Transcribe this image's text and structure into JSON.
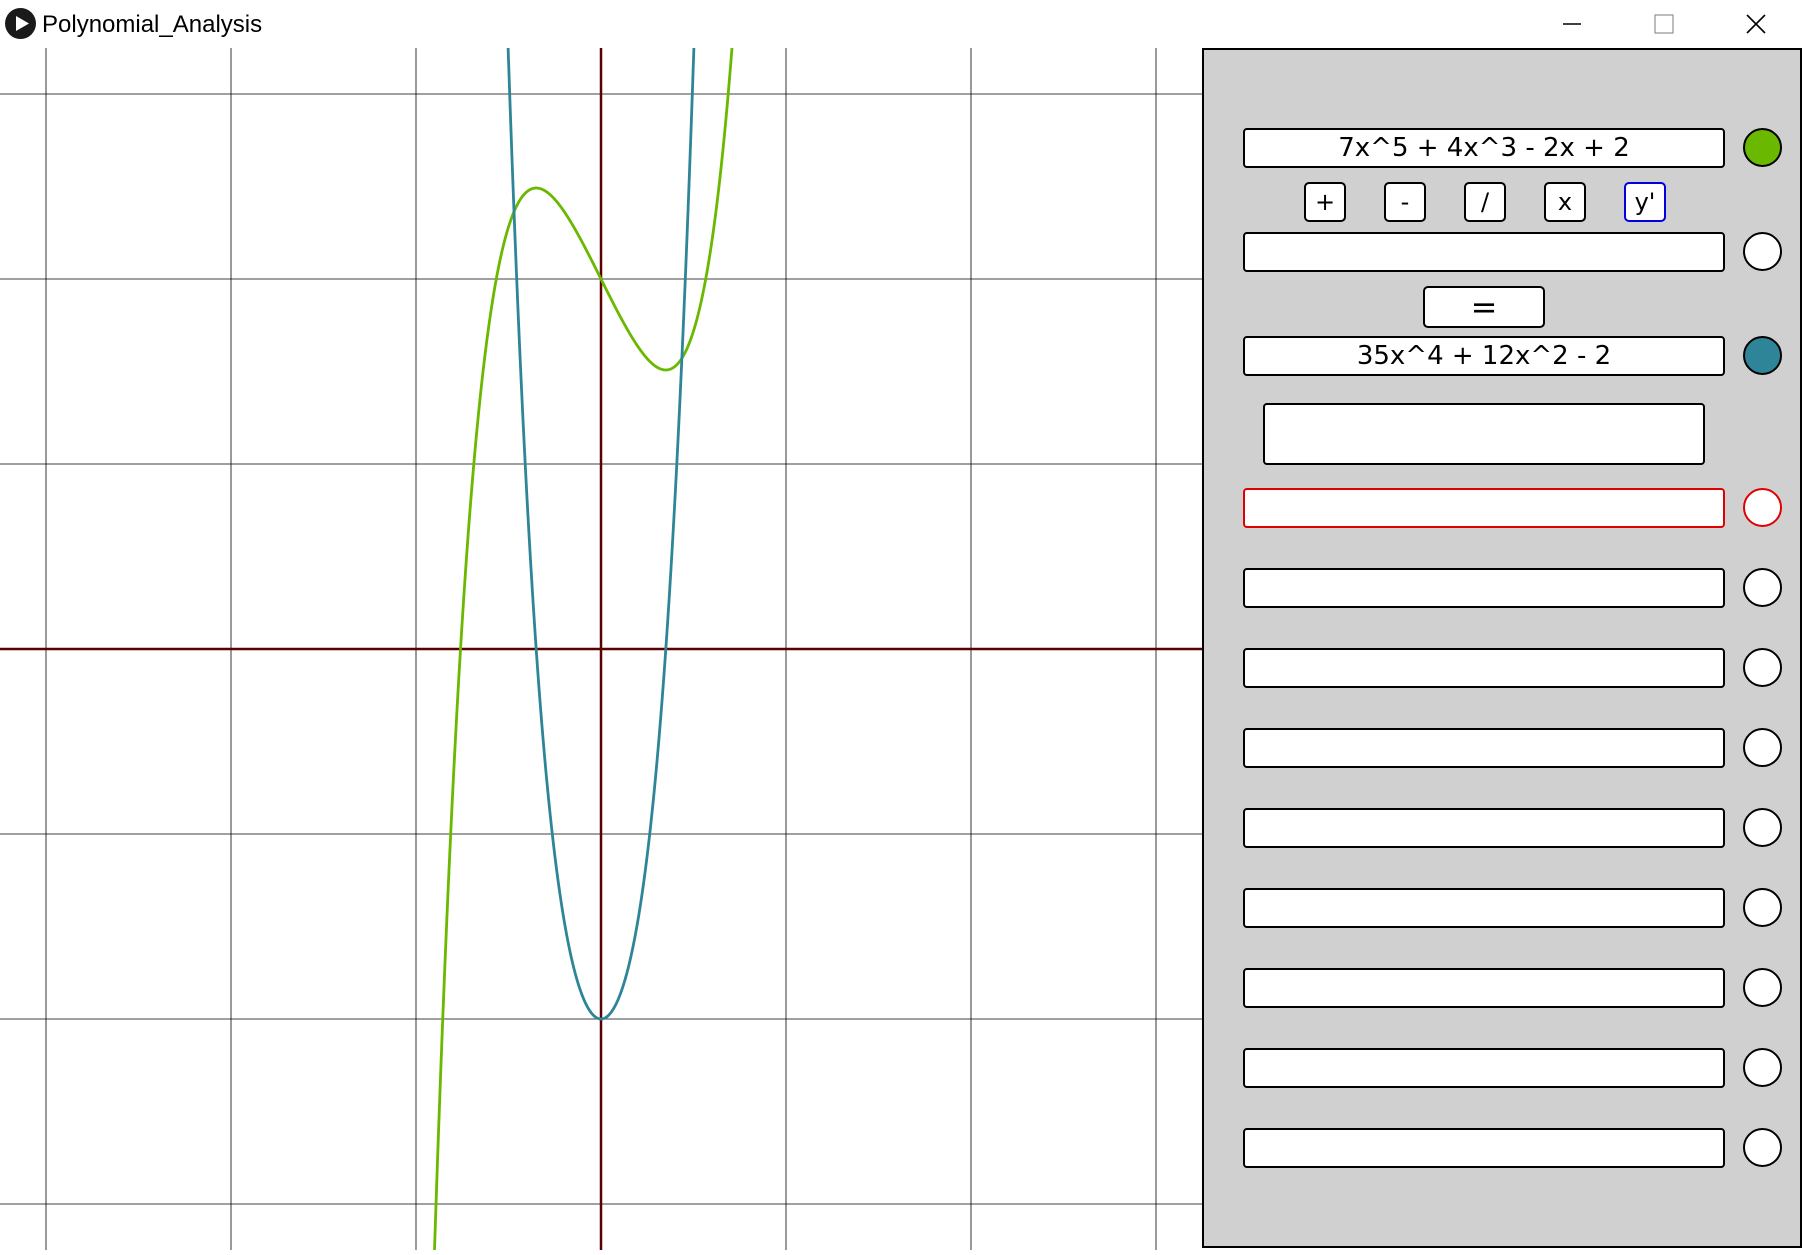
{
  "window": {
    "title": "Polynomial_Analysis"
  },
  "polynomials": {
    "input": {
      "text": "7x^5 + 4x^3 - 2x + 2",
      "color": "#6ab800"
    },
    "operand": {
      "text": "",
      "color": "#ffffff"
    },
    "result": {
      "text": "35x^4 + 12x^2 - 2",
      "color": "#2e8598"
    }
  },
  "operators": [
    {
      "label": "+"
    },
    {
      "label": "-"
    },
    {
      "label": "/"
    },
    {
      "label": "x"
    },
    {
      "label": "y'",
      "selected": true
    }
  ],
  "equals_label": "=",
  "extra_box_text": "",
  "slots": [
    {
      "text": "",
      "active": true
    },
    {
      "text": ""
    },
    {
      "text": ""
    },
    {
      "text": ""
    },
    {
      "text": ""
    },
    {
      "text": ""
    },
    {
      "text": ""
    },
    {
      "text": ""
    },
    {
      "text": ""
    }
  ],
  "graph": {
    "axis_color": "#5a0000",
    "grid_color": "#000000",
    "curves": [
      {
        "expr": "7x^5 + 4x^3 - 2x + 2",
        "color": "#6ab800"
      },
      {
        "expr": "35x^4 + 12x^2 - 2",
        "color": "#2e8598"
      }
    ]
  }
}
